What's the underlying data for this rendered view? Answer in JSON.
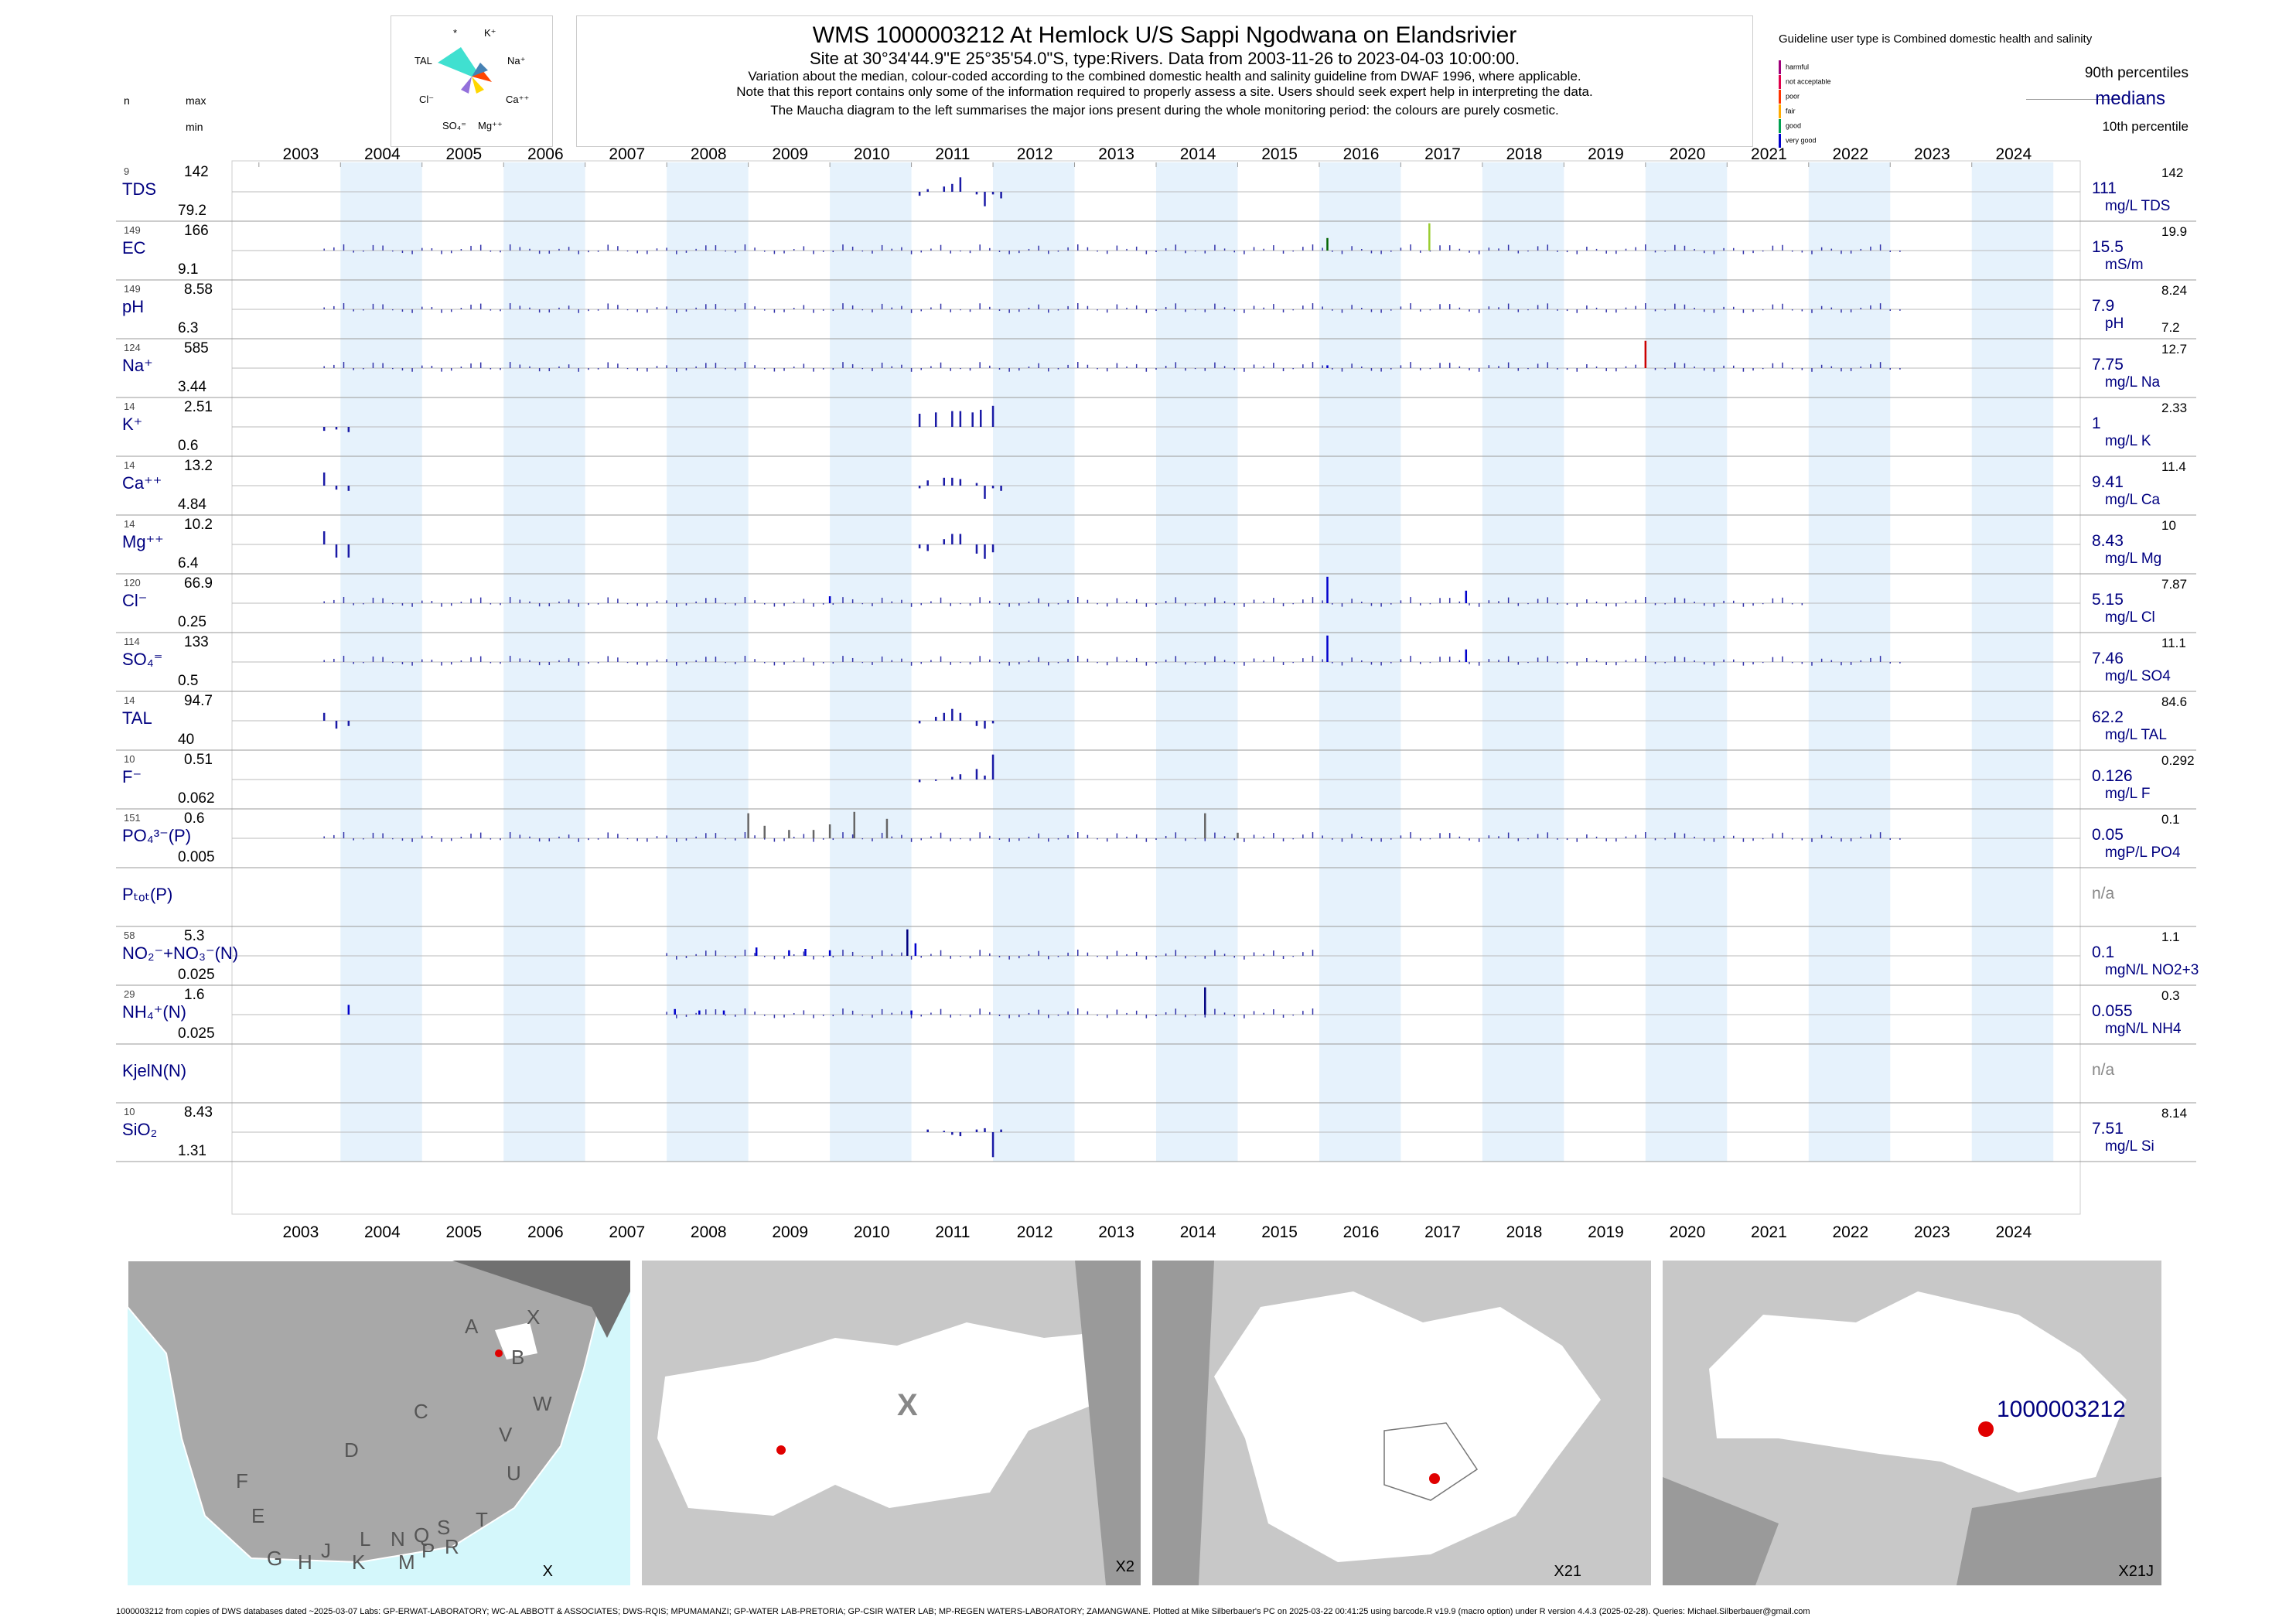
{
  "header": {
    "title": "WMS 1000003212  At Hemlock U/S Sappi Ngodwana on Elandsrivier",
    "subtitle": "Site at 30°34'44.9\"E 25°35'54.0\"S, type:Rivers.  Data from 2003-11-26 to 2023-04-03 10:00:00.",
    "note1": "Variation about the median,  colour-coded according to the combined domestic health and salinity guideline from DWAF 1996, where applicable.",
    "note2": "Note that this report contains only some of the information required to properly assess a site. Users should seek expert help in interpreting the data.",
    "note3": "The Maucha diagram to the left summarises the major ions present during the whole monitoring period: the colours are purely cosmetic."
  },
  "maucha": {
    "labels": [
      "*",
      "K⁺",
      "TAL",
      "Na⁺",
      "Cl⁻",
      "Ca⁺⁺",
      "SO₄⁼",
      "Mg⁺⁺"
    ]
  },
  "guideline": {
    "title": "Guideline user type is Combined domestic health and salinity",
    "levels": [
      {
        "label": "harmful",
        "color": "#a0007a"
      },
      {
        "label": "not acceptable",
        "color": "#e0004a"
      },
      {
        "label": "poor",
        "color": "#ff3300"
      },
      {
        "label": "fair",
        "color": "#ffaa00"
      },
      {
        "label": "good",
        "color": "#00a050"
      },
      {
        "label": "very good",
        "color": "#0000cc"
      }
    ],
    "p90": "90th percentiles",
    "medians": "medians",
    "p10": "10th percentile"
  },
  "col_headers": {
    "n": "n",
    "max": "max",
    "min": "min"
  },
  "years": [
    "2003",
    "2004",
    "2005",
    "2006",
    "2007",
    "2008",
    "2009",
    "2010",
    "2011",
    "2012",
    "2013",
    "2014",
    "2015",
    "2016",
    "2017",
    "2018",
    "2019",
    "2020",
    "2021",
    "2022",
    "2023",
    "2024"
  ],
  "chart_data": {
    "type": "bar",
    "x_range": [
      "2002-09-01",
      "2025-05-01"
    ],
    "panels": [
      {
        "name": "TDS",
        "n": "9",
        "max": "142",
        "min": "79.2",
        "median": "111",
        "unit": "mg/L TDS",
        "p90": "142",
        "p10": "",
        "bars": [
          [
            2011.1,
            -0.15
          ],
          [
            2011.2,
            0.1
          ],
          [
            2011.4,
            0.2
          ],
          [
            2011.5,
            0.3
          ],
          [
            2011.6,
            0.55
          ],
          [
            2011.8,
            -0.1
          ],
          [
            2011.9,
            -0.55
          ],
          [
            2012.0,
            -0.1
          ],
          [
            2012.1,
            -0.25
          ]
        ]
      },
      {
        "name": "EC",
        "n": "149",
        "max": "166",
        "min": "9.1",
        "median": "15.5",
        "unit": "mS/m",
        "p90": "19.9",
        "p10": "",
        "spikes": [
          [
            2016.1,
            0.45,
            "#006400"
          ],
          [
            2017.35,
            0.98,
            "#9acd32"
          ]
        ],
        "dense": [
          2003.8,
          2023.2
        ]
      },
      {
        "name": "pH",
        "n": "149",
        "max": "8.58",
        "min": "6.3",
        "median": "7.9",
        "unit": "pH",
        "p90": "8.24",
        "p10": "7.2",
        "dense": [
          2003.8,
          2023.2
        ]
      },
      {
        "name": "Na⁺",
        "n": "124",
        "max": "585",
        "min": "3.44",
        "median": "7.75",
        "unit": "mg/L Na",
        "p90": "12.7",
        "p10": "",
        "spikes": [
          [
            2020.0,
            0.98,
            "#cc0000"
          ],
          [
            2016.1,
            0.1,
            "#0000cc"
          ]
        ],
        "dense": [
          2003.8,
          2023.2
        ]
      },
      {
        "name": "K⁺",
        "n": "14",
        "max": "2.51",
        "min": "0.6",
        "median": "1",
        "unit": "mg/L K",
        "p90": "2.33",
        "p10": "",
        "bars": [
          [
            2003.8,
            -0.15
          ],
          [
            2003.95,
            -0.1
          ],
          [
            2004.1,
            -0.2
          ],
          [
            2011.1,
            0.5
          ],
          [
            2011.3,
            0.55
          ],
          [
            2011.5,
            0.6
          ],
          [
            2011.6,
            0.6
          ],
          [
            2011.75,
            0.55
          ],
          [
            2011.85,
            0.65
          ],
          [
            2012.0,
            0.8
          ]
        ]
      },
      {
        "name": "Ca⁺⁺",
        "n": "14",
        "max": "13.2",
        "min": "4.84",
        "median": "9.41",
        "unit": "mg/L Ca",
        "p90": "11.4",
        "p10": "",
        "bars": [
          [
            2003.8,
            0.5
          ],
          [
            2003.95,
            -0.15
          ],
          [
            2004.1,
            -0.2
          ],
          [
            2011.1,
            -0.1
          ],
          [
            2011.2,
            0.2
          ],
          [
            2011.4,
            0.3
          ],
          [
            2011.5,
            0.3
          ],
          [
            2011.6,
            0.25
          ],
          [
            2011.8,
            0.1
          ],
          [
            2011.9,
            -0.5
          ],
          [
            2012.0,
            -0.1
          ],
          [
            2012.1,
            -0.2
          ]
        ]
      },
      {
        "name": "Mg⁺⁺",
        "n": "14",
        "max": "10.2",
        "min": "6.4",
        "median": "8.43",
        "unit": "mg/L Mg",
        "p90": "10",
        "p10": "",
        "bars": [
          [
            2003.8,
            0.5
          ],
          [
            2003.95,
            -0.5
          ],
          [
            2004.1,
            -0.5
          ],
          [
            2011.1,
            -0.15
          ],
          [
            2011.2,
            -0.25
          ],
          [
            2011.4,
            0.2
          ],
          [
            2011.5,
            0.4
          ],
          [
            2011.6,
            0.4
          ],
          [
            2011.8,
            -0.35
          ],
          [
            2011.9,
            -0.55
          ],
          [
            2012.0,
            -0.3
          ]
        ]
      },
      {
        "name": "Cl⁻",
        "n": "120",
        "max": "66.9",
        "min": "0.25",
        "median": "5.15",
        "unit": "mg/L Cl",
        "p90": "7.87",
        "p10": "",
        "spikes": [
          [
            2016.1,
            0.95,
            "#0000cc"
          ],
          [
            2017.8,
            0.45,
            "#0000cc"
          ],
          [
            2010.0,
            0.25,
            "#0000cc"
          ]
        ],
        "dense": [
          2003.8,
          2022.0
        ]
      },
      {
        "name": "SO₄⁼",
        "n": "114",
        "max": "133",
        "min": "0.5",
        "median": "7.46",
        "unit": "mg/L SO4",
        "p90": "11.1",
        "p10": "",
        "spikes": [
          [
            2016.1,
            0.95,
            "#0000cc"
          ],
          [
            2017.8,
            0.45,
            "#0000cc"
          ]
        ],
        "dense": [
          2003.8,
          2023.2
        ]
      },
      {
        "name": "TAL",
        "n": "14",
        "max": "94.7",
        "min": "40",
        "median": "62.2",
        "unit": "mg/L TAL",
        "p90": "84.6",
        "p10": "",
        "bars": [
          [
            2003.8,
            0.3
          ],
          [
            2003.95,
            -0.3
          ],
          [
            2004.1,
            -0.2
          ],
          [
            2011.1,
            -0.1
          ],
          [
            2011.3,
            0.15
          ],
          [
            2011.4,
            0.3
          ],
          [
            2011.5,
            0.45
          ],
          [
            2011.6,
            0.3
          ],
          [
            2011.8,
            -0.2
          ],
          [
            2011.9,
            -0.3
          ],
          [
            2012.0,
            -0.1
          ]
        ]
      },
      {
        "name": "F⁻",
        "n": "10",
        "max": "0.51",
        "min": "0.062",
        "median": "0.126",
        "unit": "mg/L F",
        "p90": "0.292",
        "p10": "",
        "bars": [
          [
            2011.1,
            -0.1
          ],
          [
            2011.3,
            -0.05
          ],
          [
            2011.5,
            0.1
          ],
          [
            2011.6,
            0.2
          ],
          [
            2011.8,
            0.4
          ],
          [
            2011.9,
            0.15
          ],
          [
            2012.0,
            0.95
          ]
        ]
      },
      {
        "name": "PO₄³⁻(P)",
        "n": "151",
        "max": "0.6",
        "min": "0.005",
        "median": "0.05",
        "unit": "mgP/L PO4",
        "p90": "0.1",
        "p10": "",
        "spikes": [
          [
            2009.0,
            0.9,
            "#666"
          ],
          [
            2009.2,
            0.45,
            "#666"
          ],
          [
            2009.5,
            0.3,
            "#666"
          ],
          [
            2009.8,
            0.3,
            "#666"
          ],
          [
            2010.0,
            0.5,
            "#666"
          ],
          [
            2010.3,
            0.95,
            "#666"
          ],
          [
            2010.7,
            0.7,
            "#666"
          ],
          [
            2014.6,
            0.9,
            "#666"
          ],
          [
            2015.0,
            0.2,
            "#666"
          ]
        ],
        "dense": [
          2003.8,
          2023.2
        ]
      },
      {
        "name": "Pₜₒₜ(P)",
        "n": "",
        "max": "",
        "min": "",
        "median": "n/a",
        "unit": "",
        "p90": "",
        "p10": ""
      },
      {
        "name": "NO₂⁻+NO₃⁻(N)",
        "n": "58",
        "max": "5.3",
        "min": "0.025",
        "median": "0.1",
        "unit": "mgN/L NO2+3",
        "p90": "1.1",
        "p10": "",
        "spikes": [
          [
            2010.95,
            0.95,
            "#000080"
          ],
          [
            2011.05,
            0.45,
            "#0000cc"
          ],
          [
            2009.1,
            0.3,
            "#0000cc"
          ],
          [
            2009.5,
            0.2,
            "#0000cc"
          ],
          [
            2009.7,
            0.25,
            "#0000cc"
          ],
          [
            2010.0,
            0.2,
            "#0000cc"
          ]
        ],
        "dense": [
          2008.0,
          2016.0
        ]
      },
      {
        "name": "NH₄⁺(N)",
        "n": "29",
        "max": "1.6",
        "min": "0.025",
        "median": "0.055",
        "unit": "mgN/L NH4",
        "p90": "0.3",
        "p10": "",
        "spikes": [
          [
            2014.6,
            0.98,
            "#000080"
          ],
          [
            2004.1,
            0.35,
            "#0000cc"
          ],
          [
            2008.1,
            0.2,
            "#0000cc"
          ],
          [
            2008.4,
            0.15,
            "#0000cc"
          ],
          [
            2008.7,
            0.15,
            "#0000cc"
          ],
          [
            2011.0,
            0.15,
            "#0000cc"
          ]
        ],
        "dense": [
          2008.0,
          2016.0
        ]
      },
      {
        "name": "KjelN(N)",
        "n": "",
        "max": "",
        "min": "",
        "median": "n/a",
        "unit": "",
        "p90": "",
        "p10": ""
      },
      {
        "name": "SiO₂",
        "n": "10",
        "max": "8.43",
        "min": "1.31",
        "median": "7.51",
        "unit": "mg/L Si",
        "p90": "8.14",
        "p10": "",
        "bars": [
          [
            2011.2,
            0.1
          ],
          [
            2011.4,
            0.05
          ],
          [
            2011.5,
            -0.1
          ],
          [
            2011.6,
            -0.15
          ],
          [
            2011.8,
            0.1
          ],
          [
            2011.9,
            0.15
          ],
          [
            2012.0,
            -0.95
          ],
          [
            2012.1,
            0.1
          ]
        ]
      }
    ]
  },
  "maps": [
    {
      "label": "X",
      "regions": [
        "A",
        "B",
        "X",
        "C",
        "W",
        "D",
        "V",
        "U",
        "F",
        "T",
        "E",
        "L",
        "N",
        "Q",
        "S",
        "G",
        "H",
        "J",
        "K",
        "M",
        "P",
        "R"
      ]
    },
    {
      "label": "X2",
      "center": "X"
    },
    {
      "label": "X21"
    },
    {
      "label": "X21J",
      "site": "1000003212"
    }
  ],
  "footer": "1000003212 from copies of DWS databases dated ~2025-03-07 Labs: GP-ERWAT-LABORATORY; WC-AL ABBOTT & ASSOCIATES; DWS-RQIS; MPUMAMANZI; GP-WATER LAB-PRETORIA; GP-CSIR WATER LAB; MP-REGEN WATERS-LABORATORY; ZAMANGWANE. Plotted at Mike Silberbauer's PC on 2025-03-22 00:41:25 using barcode.R v19.9 (macro option) under R version 4.4.3 (2025-02-28). Queries: Michael.Silberbauer@gmail.com"
}
